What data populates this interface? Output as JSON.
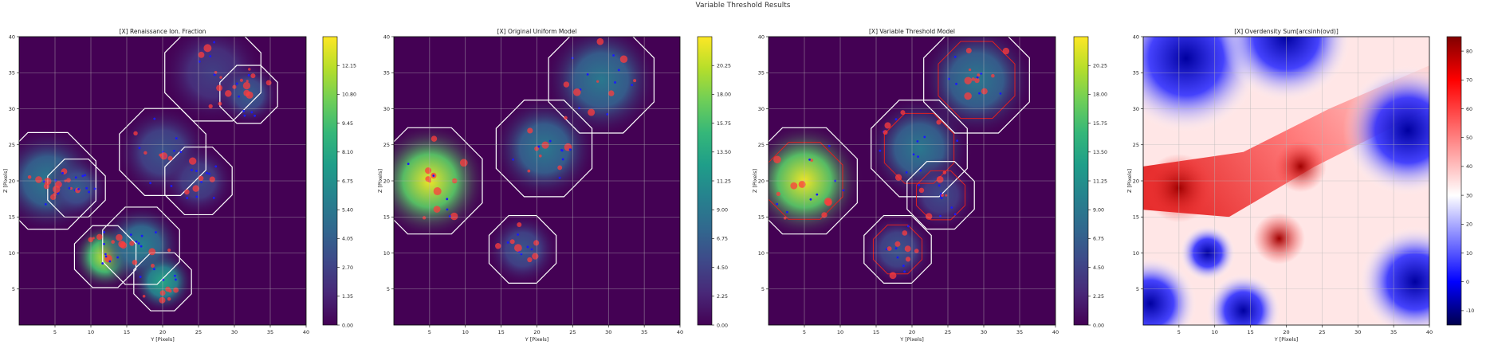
{
  "figure": {
    "title": "Variable Threshold Results"
  },
  "chart_data": [
    {
      "type": "heatmap",
      "title": "[X] Renaissance Ion. Fraction",
      "xlabel": "Y [Pixels]",
      "ylabel": "Z [Pixels]",
      "xlim": [
        0,
        40
      ],
      "ylim": [
        0,
        40
      ],
      "x_ticks": [
        5,
        10,
        15,
        20,
        25,
        30,
        35,
        40
      ],
      "y_ticks": [
        5,
        10,
        15,
        20,
        25,
        30,
        35,
        40
      ],
      "colormap": "viridis",
      "colorbar_ticks": [
        "0.00",
        "1.35",
        "2.70",
        "4.05",
        "5.40",
        "6.75",
        "8.10",
        "9.45",
        "10.80",
        "12.15"
      ],
      "colorbar_range": [
        0,
        13.5
      ],
      "blobs": [
        {
          "x": 4,
          "y": 20,
          "r": 5,
          "v": 5.5
        },
        {
          "x": 8,
          "y": 19,
          "r": 3,
          "v": 4
        },
        {
          "x": 12,
          "y": 9.5,
          "r": 3.2,
          "v": 12.5
        },
        {
          "x": 17,
          "y": 11,
          "r": 4,
          "v": 6
        },
        {
          "x": 20,
          "y": 6,
          "r": 3,
          "v": 8
        },
        {
          "x": 20,
          "y": 24,
          "r": 4.5,
          "v": 3.5
        },
        {
          "x": 25,
          "y": 20,
          "r": 3.5,
          "v": 3
        },
        {
          "x": 27,
          "y": 35,
          "r": 5,
          "v": 2.5
        },
        {
          "x": 32,
          "y": 32,
          "r": 3,
          "v": 4
        }
      ],
      "contour_color": "#ffffff",
      "red_contours": false
    },
    {
      "type": "heatmap",
      "title": "[X] Original Uniform Model",
      "xlabel": "Y [Pixels]",
      "ylabel": "Z [Pixels]",
      "xlim": [
        0,
        40
      ],
      "ylim": [
        0,
        40
      ],
      "x_ticks": [
        5,
        10,
        15,
        20,
        25,
        30,
        35,
        40
      ],
      "y_ticks": [
        5,
        10,
        15,
        20,
        25,
        30,
        35,
        40
      ],
      "colormap": "viridis",
      "colorbar_ticks": [
        "0.00",
        "2.25",
        "4.50",
        "6.75",
        "9.00",
        "11.25",
        "13.50",
        "15.75",
        "18.00",
        "20.25"
      ],
      "colorbar_range": [
        0,
        22.5
      ],
      "blobs": [
        {
          "x": 5,
          "y": 20,
          "r": 5.5,
          "v": 22
        },
        {
          "x": 21,
          "y": 24.5,
          "r": 5,
          "v": 9
        },
        {
          "x": 29,
          "y": 34,
          "r": 5.5,
          "v": 9
        },
        {
          "x": 18,
          "y": 10.5,
          "r": 3.5,
          "v": 6
        }
      ],
      "contour_color": "#ffffff",
      "red_contours": false
    },
    {
      "type": "heatmap",
      "title": "[X] Variable Threshold Model",
      "xlabel": "Y [Pixels]",
      "ylabel": "Z [Pixels]",
      "xlim": [
        0,
        40
      ],
      "ylim": [
        0,
        40
      ],
      "x_ticks": [
        5,
        10,
        15,
        20,
        25,
        30,
        35,
        40
      ],
      "y_ticks": [
        5,
        10,
        15,
        20,
        25,
        30,
        35,
        40
      ],
      "colormap": "viridis",
      "colorbar_ticks": [
        "0.00",
        "2.25",
        "4.50",
        "6.75",
        "9.00",
        "11.25",
        "13.50",
        "15.75",
        "18.00",
        "20.25"
      ],
      "colorbar_range": [
        0,
        22.5
      ],
      "blobs": [
        {
          "x": 5,
          "y": 20,
          "r": 5.5,
          "v": 22
        },
        {
          "x": 21,
          "y": 24.5,
          "r": 5,
          "v": 9
        },
        {
          "x": 29,
          "y": 34,
          "r": 5.5,
          "v": 9
        },
        {
          "x": 18,
          "y": 10.5,
          "r": 3.5,
          "v": 6
        },
        {
          "x": 24,
          "y": 18,
          "r": 3.5,
          "v": 5
        }
      ],
      "contour_color": "#ffffff",
      "red_contours": true
    },
    {
      "type": "heatmap",
      "title": "[X] Overdensity Sum[arcsinh(ovd)]",
      "xlabel": "Y [Pixels]",
      "ylabel": "Z [Pixels]",
      "xlim": [
        0,
        40
      ],
      "ylim": [
        0,
        40
      ],
      "x_ticks": [
        5,
        10,
        15,
        20,
        25,
        30,
        35,
        40
      ],
      "y_ticks": [
        5,
        10,
        15,
        20,
        25,
        30,
        35,
        40
      ],
      "colormap": "seismic",
      "colorbar_ticks": [
        "-10",
        "0",
        "10",
        "20",
        "30",
        "40",
        "50",
        "60",
        "70",
        "80"
      ],
      "colorbar_range": [
        -15,
        85
      ]
    }
  ],
  "colors": {
    "viridis_low": "#440154",
    "viridis_high": "#fde725",
    "seismic_low": "#00004c",
    "seismic_mid": "#ffffff",
    "seismic_high": "#800000",
    "marker_red": "#ff3030",
    "marker_blue": "#1a1aff",
    "grid": "#b8b8b8"
  }
}
